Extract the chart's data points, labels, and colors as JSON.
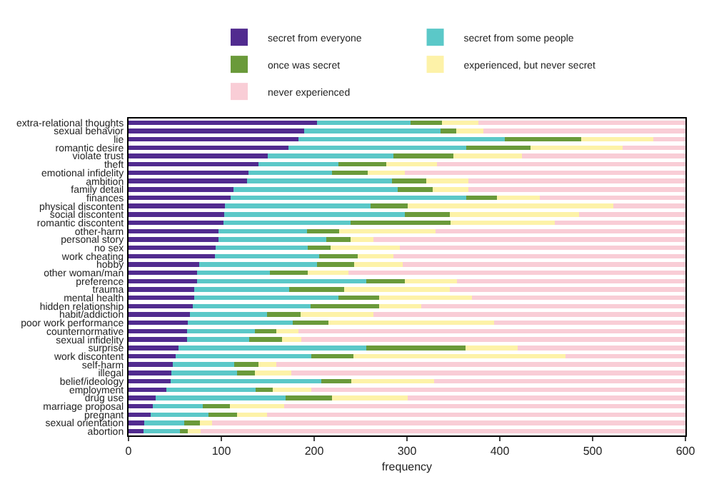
{
  "chart_data": {
    "type": "bar",
    "orientation": "horizontal",
    "stacked": true,
    "xlabel": "frequency",
    "xlim": [
      0,
      600
    ],
    "xticks": [
      0,
      100,
      200,
      300,
      400,
      500,
      600
    ],
    "grid": false,
    "legend": "top",
    "categories": [
      "extra-relational thoughts",
      "sexual behavior",
      "lie",
      "romantic desire",
      "violate trust",
      "theft",
      "emotional infidelity",
      "ambition",
      "family detail",
      "finances",
      "physical discontent",
      "social discontent",
      "romantic discontent",
      "other-harm",
      "personal story",
      "no sex",
      "work cheating",
      "hobby",
      "other woman/man",
      "preference",
      "trauma",
      "mental health",
      "hidden relationship",
      "habit/addiction",
      "poor work performance",
      "counternormative",
      "sexual infidelity",
      "surprise",
      "work discontent",
      "self-harm",
      "illegal",
      "belief/ideology",
      "employment",
      "drug use",
      "marriage proposal",
      "pregnant",
      "sexual orientation",
      "abortion"
    ],
    "series": [
      {
        "name": "secret from everyone",
        "color": "#512b8f",
        "values": [
          203,
          189,
          183,
          172,
          150,
          140,
          129,
          128,
          113,
          110,
          104,
          103,
          102,
          97,
          97,
          94,
          93,
          76,
          74,
          74,
          71,
          71,
          69,
          66,
          64,
          63,
          63,
          54,
          51,
          48,
          46,
          45,
          41,
          29,
          26,
          24,
          17,
          16
        ]
      },
      {
        "name": "secret from some people",
        "color": "#5bc8c8",
        "values": [
          101,
          147,
          222,
          192,
          135,
          86,
          90,
          156,
          177,
          254,
          157,
          195,
          137,
          95,
          116,
          99,
          112,
          127,
          78,
          182,
          102,
          155,
          127,
          83,
          113,
          73,
          67,
          202,
          146,
          66,
          71,
          163,
          96,
          140,
          54,
          62,
          43,
          39
        ]
      },
      {
        "name": "once was secret",
        "color": "#6a9a3a",
        "values": [
          34,
          17,
          83,
          69,
          65,
          52,
          39,
          37,
          38,
          33,
          40,
          48,
          108,
          35,
          26,
          25,
          42,
          40,
          41,
          42,
          59,
          44,
          74,
          36,
          38,
          23,
          35,
          107,
          45,
          26,
          19,
          32,
          18,
          50,
          29,
          31,
          17,
          9
        ]
      },
      {
        "name": "experienced, but never secret",
        "color": "#fdf2a8",
        "values": [
          39,
          29,
          77,
          99,
          74,
          54,
          40,
          45,
          38,
          46,
          221,
          139,
          112,
          104,
          25,
          74,
          38,
          52,
          44,
          56,
          114,
          100,
          45,
          79,
          179,
          24,
          21,
          56,
          229,
          19,
          39,
          89,
          42,
          82,
          59,
          32,
          13,
          14
        ]
      },
      {
        "name": "never experienced",
        "color": "#f9cdd6",
        "values": [
          223,
          218,
          35,
          68,
          176,
          268,
          302,
          234,
          234,
          157,
          78,
          115,
          141,
          269,
          336,
          308,
          315,
          305,
          363,
          246,
          254,
          230,
          285,
          336,
          206,
          417,
          414,
          181,
          129,
          441,
          425,
          271,
          403,
          299,
          432,
          451,
          510,
          522
        ]
      }
    ]
  }
}
